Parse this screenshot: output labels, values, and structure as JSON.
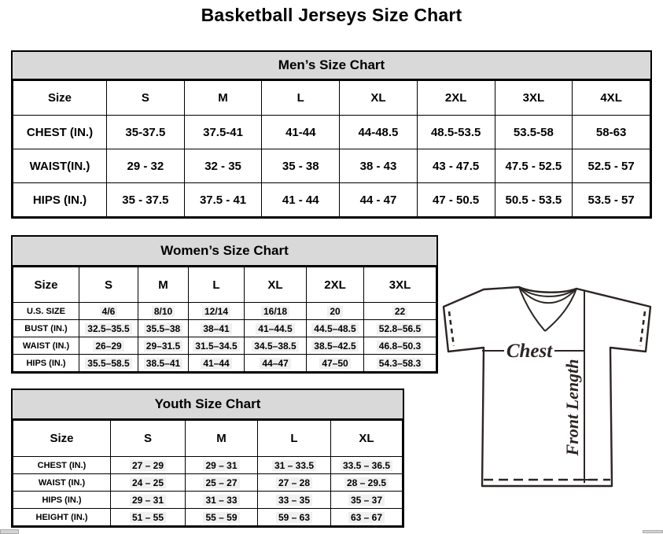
{
  "page": {
    "title": "Basketball Jerseys Size Chart"
  },
  "tables": {
    "men": {
      "title": "Men’s Size Chart",
      "columns": [
        "Size",
        "S",
        "M",
        "L",
        "XL",
        "2XL",
        "3XL",
        "4XL"
      ],
      "rows": [
        {
          "label": "CHEST (IN.)",
          "values": [
            "35-37.5",
            "37.5-41",
            "41-44",
            "44-48.5",
            "48.5-53.5",
            "53.5-58",
            "58-63"
          ]
        },
        {
          "label": "WAIST(IN.)",
          "values": [
            "29 - 32",
            "32 - 35",
            "35 - 38",
            "38 - 43",
            "43 - 47.5",
            "47.5 - 52.5",
            "52.5 - 57"
          ]
        },
        {
          "label": "HIPS (IN.)",
          "values": [
            "35 - 37.5",
            "37.5 - 41",
            "41 - 44",
            "44 - 47",
            "47 - 50.5",
            "50.5 - 53.5",
            "53.5 - 57"
          ]
        }
      ]
    },
    "women": {
      "title": "Women’s Size Chart",
      "columns": [
        "Size",
        "S",
        "M",
        "L",
        "XL",
        "2XL",
        "3XL"
      ],
      "rows": [
        {
          "label": "U.S. SIZE",
          "values": [
            "4/6",
            "8/10",
            "12/14",
            "16/18",
            "20",
            "22"
          ]
        },
        {
          "label": "BUST (IN.)",
          "values": [
            "32.5–35.5",
            "35.5–38",
            "38–41",
            "41–44.5",
            "44.5–48.5",
            "52.8–56.5"
          ]
        },
        {
          "label": "WAIST (IN.)",
          "values": [
            "26–29",
            "29–31.5",
            "31.5–34.5",
            "34.5–38.5",
            "38.5–42.5",
            "46.8–50.3"
          ]
        },
        {
          "label": "HIPS (IN.)",
          "values": [
            "35.5–58.5",
            "38.5–41",
            "41–44",
            "44–47",
            "47–50",
            "54.3–58.3"
          ]
        }
      ]
    },
    "youth": {
      "title": "Youth Size Chart",
      "columns": [
        "Size",
        "S",
        "M",
        "L",
        "XL"
      ],
      "rows": [
        {
          "label": "CHEST (IN.)",
          "values": [
            "27 – 29",
            "29 – 31",
            "31 – 33.5",
            "33.5 – 36.5"
          ]
        },
        {
          "label": "WAIST (IN.)",
          "values": [
            "24 – 25",
            "25 – 27",
            "27 – 28",
            "28 – 29.5"
          ]
        },
        {
          "label": "HIPS (IN.)",
          "values": [
            "29 – 31",
            "31 – 33",
            "33 – 35",
            "35 – 37"
          ]
        },
        {
          "label": "HEIGHT (IN.)",
          "values": [
            "51 – 55",
            "55 – 59",
            "59 – 63",
            "63 – 67"
          ]
        }
      ]
    }
  },
  "diagram": {
    "chest_label": "Chest",
    "front_length_label": "Front Length",
    "line_color": "#2b2523"
  }
}
